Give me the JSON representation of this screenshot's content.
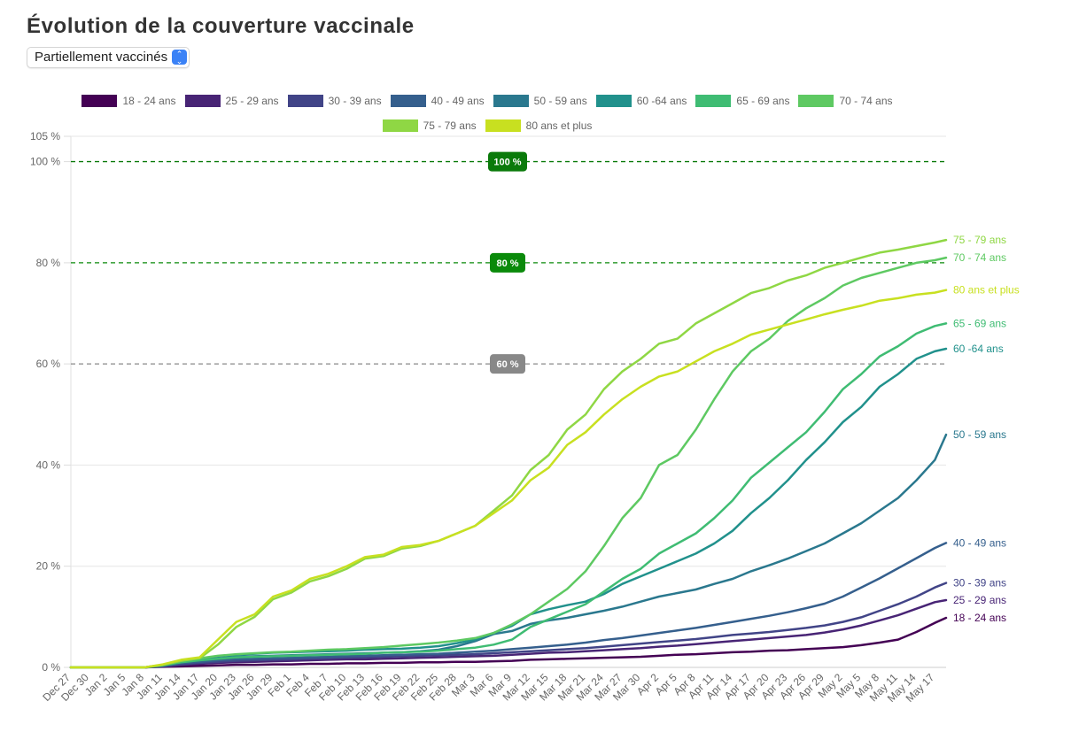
{
  "page": {
    "title": "Évolution de la couverture vaccinale",
    "select": {
      "value": "Partiellement vaccinés",
      "icon": "updown-chevron-icon"
    }
  },
  "chart_data": {
    "type": "line",
    "title": "Évolution de la couverture vaccinale",
    "xlabel": "",
    "ylabel": "",
    "ylim": [
      0,
      105
    ],
    "y_ticks": [
      "0 %",
      "20 %",
      "40 %",
      "60 %",
      "80 %",
      "100 %",
      "105 %"
    ],
    "y_tick_values": [
      0,
      20,
      40,
      60,
      80,
      100,
      105
    ],
    "grid": true,
    "legend_position": "top",
    "x_labels": [
      "Dec 27",
      "Dec 30",
      "Jan 2",
      "Jan 5",
      "Jan 8",
      "Jan 11",
      "Jan 14",
      "Jan 17",
      "Jan 20",
      "Jan 23",
      "Jan 26",
      "Jan 29",
      "Feb 1",
      "Feb 4",
      "Feb 7",
      "Feb 10",
      "Feb 13",
      "Feb 16",
      "Feb 19",
      "Feb 22",
      "Feb 25",
      "Feb 28",
      "Mar 3",
      "Mar 6",
      "Mar 9",
      "Mar 12",
      "Mar 15",
      "Mar 18",
      "Mar 21",
      "Mar 24",
      "Mar 27",
      "Mar 30",
      "Apr 2",
      "Apr 5",
      "Apr 8",
      "Apr 11",
      "Apr 14",
      "Apr 17",
      "Apr 20",
      "Apr 23",
      "Apr 26",
      "Apr 29",
      "May 2",
      "May 5",
      "May 8",
      "May 11",
      "May 14",
      "May 17"
    ],
    "x_point_note": "values sampled every 3 days from Dec 27; last value is May 20",
    "reference_lines": [
      {
        "value": 100,
        "label": "100 %",
        "color": "#0a7a0a"
      },
      {
        "value": 80,
        "label": "80 %",
        "color": "#0a8a0a"
      },
      {
        "value": 60,
        "label": "60 %",
        "color": "#888888"
      }
    ],
    "series": [
      {
        "name": "18 - 24 ans",
        "color": "#440154",
        "values": [
          0,
          0,
          0,
          0,
          0,
          0.1,
          0.2,
          0.3,
          0.4,
          0.5,
          0.5,
          0.6,
          0.6,
          0.7,
          0.7,
          0.8,
          0.8,
          0.9,
          0.9,
          1.0,
          1.0,
          1.1,
          1.1,
          1.2,
          1.3,
          1.5,
          1.6,
          1.7,
          1.8,
          1.9,
          2.0,
          2.1,
          2.3,
          2.5,
          2.6,
          2.8,
          3.0,
          3.1,
          3.3,
          3.4,
          3.6,
          3.8,
          4.0,
          4.4,
          4.9,
          5.5,
          7.0,
          8.8,
          9.8
        ]
      },
      {
        "name": "25 - 29 ans",
        "color": "#482475",
        "values": [
          0,
          0,
          0,
          0,
          0,
          0.2,
          0.5,
          0.7,
          0.9,
          1.0,
          1.1,
          1.2,
          1.3,
          1.4,
          1.5,
          1.6,
          1.6,
          1.7,
          1.8,
          1.9,
          2.0,
          2.1,
          2.2,
          2.3,
          2.5,
          2.7,
          2.9,
          3.0,
          3.2,
          3.4,
          3.6,
          3.8,
          4.1,
          4.3,
          4.6,
          4.9,
          5.2,
          5.5,
          5.8,
          6.1,
          6.4,
          6.9,
          7.5,
          8.3,
          9.3,
          10.3,
          11.6,
          12.9,
          13.3
        ]
      },
      {
        "name": "30 - 39 ans",
        "color": "#414487",
        "values": [
          0,
          0,
          0,
          0,
          0,
          0.2,
          0.6,
          0.9,
          1.1,
          1.3,
          1.4,
          1.5,
          1.6,
          1.7,
          1.8,
          1.9,
          2.0,
          2.1,
          2.2,
          2.3,
          2.4,
          2.5,
          2.6,
          2.8,
          3.0,
          3.2,
          3.4,
          3.6,
          3.8,
          4.1,
          4.4,
          4.7,
          5.0,
          5.3,
          5.6,
          6.0,
          6.4,
          6.7,
          7.0,
          7.4,
          7.8,
          8.3,
          9.0,
          9.9,
          11.2,
          12.5,
          14.0,
          15.8,
          16.7
        ]
      },
      {
        "name": "40 - 49 ans",
        "color": "#355f8d",
        "values": [
          0,
          0,
          0,
          0,
          0,
          0.3,
          0.8,
          1.1,
          1.4,
          1.6,
          1.7,
          1.8,
          1.9,
          2.0,
          2.1,
          2.2,
          2.3,
          2.4,
          2.5,
          2.6,
          2.7,
          2.9,
          3.1,
          3.3,
          3.6,
          3.9,
          4.2,
          4.5,
          4.9,
          5.4,
          5.8,
          6.3,
          6.8,
          7.3,
          7.8,
          8.4,
          9.0,
          9.6,
          10.2,
          10.9,
          11.7,
          12.6,
          14.0,
          15.8,
          17.6,
          19.6,
          21.6,
          23.6,
          24.6
        ]
      },
      {
        "name": "50 - 59 ans",
        "color": "#2a788e",
        "values": [
          0,
          0,
          0,
          0,
          0,
          0.4,
          1.0,
          1.4,
          1.8,
          2.1,
          2.2,
          2.3,
          2.4,
          2.5,
          2.6,
          2.7,
          2.8,
          2.9,
          3.0,
          3.2,
          3.5,
          4.2,
          5.2,
          6.6,
          7.2,
          8.6,
          9.3,
          9.8,
          10.5,
          11.2,
          12.0,
          13.0,
          14.0,
          14.7,
          15.4,
          16.5,
          17.5,
          19.0,
          20.2,
          21.5,
          23.0,
          24.5,
          26.5,
          28.5,
          31.0,
          33.5,
          37.0,
          41.0,
          46.0
        ]
      },
      {
        "name": "60 -64 ans",
        "color": "#21918c",
        "values": [
          0,
          0,
          0,
          0,
          0,
          0.5,
          1.2,
          1.7,
          2.2,
          2.5,
          2.7,
          2.9,
          3.0,
          3.1,
          3.2,
          3.3,
          3.5,
          3.6,
          3.7,
          3.9,
          4.2,
          4.8,
          5.5,
          6.8,
          8.2,
          10.5,
          11.5,
          12.3,
          13.0,
          14.5,
          16.5,
          18.0,
          19.5,
          21.0,
          22.5,
          24.5,
          27.0,
          30.5,
          33.5,
          37.0,
          41.0,
          44.5,
          48.5,
          51.5,
          55.5,
          58.0,
          61.0,
          62.5,
          63.0
        ]
      },
      {
        "name": "65 - 69 ans",
        "color": "#3fbc73",
        "values": [
          0,
          0,
          0,
          0,
          0,
          0.4,
          1.0,
          1.4,
          1.7,
          2.0,
          2.1,
          2.2,
          2.3,
          2.4,
          2.5,
          2.6,
          2.7,
          2.9,
          3.0,
          3.1,
          3.3,
          3.6,
          3.9,
          4.5,
          5.5,
          8.0,
          9.5,
          11.0,
          12.5,
          15.0,
          17.5,
          19.5,
          22.5,
          24.5,
          26.5,
          29.5,
          33.0,
          37.5,
          40.5,
          43.5,
          46.5,
          50.5,
          55.0,
          58.0,
          61.5,
          63.5,
          66.0,
          67.5,
          68.0
        ]
      },
      {
        "name": "70 - 74 ans",
        "color": "#5ec962",
        "values": [
          0,
          0,
          0,
          0,
          0,
          0.5,
          1.3,
          1.8,
          2.3,
          2.6,
          2.8,
          3.0,
          3.1,
          3.3,
          3.5,
          3.6,
          3.8,
          4.0,
          4.3,
          4.6,
          4.9,
          5.3,
          5.8,
          6.8,
          8.5,
          10.5,
          13.0,
          15.5,
          19.0,
          24.0,
          29.5,
          33.5,
          40.0,
          42.0,
          47.0,
          53.0,
          58.5,
          62.5,
          65.0,
          68.5,
          71.0,
          73.0,
          75.5,
          77.0,
          78.0,
          79.0,
          80.0,
          80.5,
          81.0
        ]
      },
      {
        "name": "75 - 79 ans",
        "color": "#8fd744",
        "values": [
          0,
          0,
          0,
          0,
          0,
          0.5,
          1.3,
          1.8,
          4.5,
          8.0,
          10.0,
          13.5,
          14.8,
          17.0,
          18.0,
          19.5,
          21.5,
          22.0,
          23.5,
          24.0,
          25.0,
          26.5,
          28.0,
          31.0,
          34.0,
          39.0,
          42.0,
          47.0,
          50.0,
          55.0,
          58.5,
          61.0,
          64.0,
          65.0,
          68.0,
          70.0,
          72.0,
          74.0,
          75.0,
          76.5,
          77.5,
          79.0,
          80.0,
          81.0,
          82.0,
          82.6,
          83.3,
          84.0,
          84.5
        ]
      },
      {
        "name": "80 ans et plus",
        "color": "#c8e020",
        "values": [
          0,
          0,
          0,
          0,
          0,
          0.6,
          1.5,
          2.0,
          5.5,
          9.0,
          10.5,
          14.0,
          15.2,
          17.5,
          18.5,
          20.0,
          21.8,
          22.3,
          23.8,
          24.2,
          25.0,
          26.5,
          28.0,
          30.5,
          33.0,
          37.0,
          39.5,
          44.0,
          46.5,
          50.0,
          53.0,
          55.5,
          57.5,
          58.5,
          60.5,
          62.5,
          64.0,
          65.8,
          66.8,
          67.8,
          68.8,
          69.8,
          70.7,
          71.5,
          72.5,
          73.0,
          73.7,
          74.1,
          74.6
        ]
      }
    ]
  }
}
